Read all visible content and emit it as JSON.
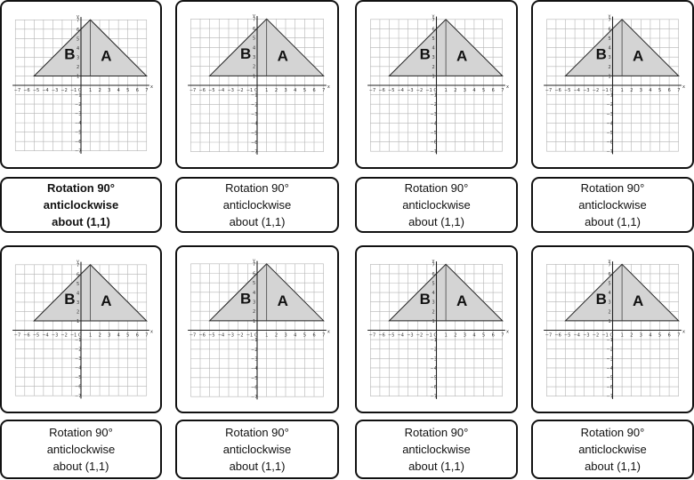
{
  "cards": [
    {
      "graph": {
        "shape_labels": [
          "B",
          "A"
        ],
        "x_axis_label": "x",
        "y_axis_label": "y"
      },
      "label": {
        "line1": "Rotation 90°",
        "line2": "anticlockwise",
        "line3": "about (1,1)",
        "bold": true
      }
    },
    {
      "graph": {
        "shape_labels": [
          "B",
          "A"
        ],
        "x_axis_label": "x",
        "y_axis_label": "y"
      },
      "label": {
        "line1": "Rotation 90°",
        "line2": "anticlockwise",
        "line3": "about (1,1)",
        "bold": false
      }
    },
    {
      "graph": {
        "shape_labels": [
          "B",
          "A"
        ],
        "x_axis_label": "x",
        "y_axis_label": "y"
      },
      "label": {
        "line1": "Rotation 90°",
        "line2": "anticlockwise",
        "line3": "about (1,1)",
        "bold": false
      }
    },
    {
      "graph": {
        "shape_labels": [
          "B",
          "A"
        ],
        "x_axis_label": "x",
        "y_axis_label": "y"
      },
      "label": {
        "line1": "Rotation 90°",
        "line2": "anticlockwise",
        "line3": "about (1,1)",
        "bold": false
      }
    },
    {
      "graph": {
        "shape_labels": [
          "B",
          "A"
        ],
        "x_axis_label": "x",
        "y_axis_label": "y"
      },
      "label": {
        "line1": "Rotation 90°",
        "line2": "anticlockwise",
        "line3": "about (1,1)",
        "bold": false
      }
    },
    {
      "graph": {
        "shape_labels": [
          "B",
          "A"
        ],
        "x_axis_label": "x",
        "y_axis_label": "y"
      },
      "label": {
        "line1": "Rotation 90°",
        "line2": "anticlockwise",
        "line3": "about (1,1)",
        "bold": false
      }
    },
    {
      "graph": {
        "shape_labels": [
          "B",
          "A"
        ],
        "x_axis_label": "x",
        "y_axis_label": "y"
      },
      "label": {
        "line1": "Rotation 90°",
        "line2": "anticlockwise",
        "line3": "about (1,1)",
        "bold": false
      }
    },
    {
      "graph": {
        "shape_labels": [
          "B",
          "A"
        ],
        "x_axis_label": "x",
        "y_axis_label": "y"
      },
      "label": {
        "line1": "Rotation 90°",
        "line2": "anticlockwise",
        "line3": "about (1,1)",
        "bold": false
      }
    }
  ],
  "graph_common": {
    "x_ticks": [
      "−7",
      "−6",
      "−5",
      "−4",
      "−3",
      "−2",
      "−1",
      "O",
      "1",
      "2",
      "3",
      "4",
      "5",
      "6",
      "7"
    ],
    "y_ticks_pos": [
      "1",
      "2",
      "3",
      "4",
      "5",
      "6",
      "7"
    ],
    "y_ticks_neg": [
      "−1",
      "−2",
      "−3",
      "−4",
      "−5",
      "−6",
      "−7"
    ],
    "triangle_vertices": [
      [
        -5,
        1
      ],
      [
        7,
        1
      ],
      [
        1,
        7
      ]
    ],
    "divider_x": 1,
    "colors": {
      "triangle_fill": "#d4d4d4",
      "grid": "#b5b5b5",
      "axis": "#222222",
      "border": "#111111"
    }
  }
}
